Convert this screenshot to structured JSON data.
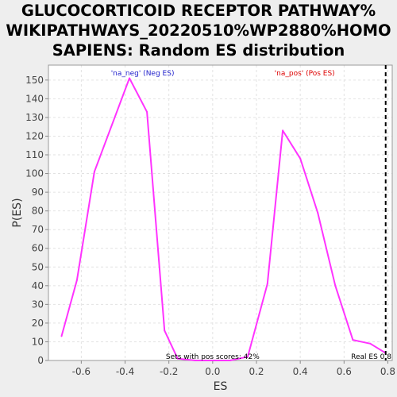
{
  "title_lines": [
    "GLUCOCORTICOID RECEPTOR PATHWAY%",
    "WIKIPATHWAYS_20220510%WP2880%HOMO",
    "SAPIENS: Random ES distribution"
  ],
  "colors": {
    "line": "#ff33ff",
    "neg_label": "#2222cc",
    "pos_label": "#dd0000",
    "background": "#eeeeee",
    "plot_background": "#ffffff",
    "grid": "#e2e2e2"
  },
  "chart_data": {
    "type": "line",
    "xlabel": "ES",
    "ylabel": "P(ES)",
    "xlim": [
      -0.75,
      0.82
    ],
    "ylim": [
      0,
      158
    ],
    "grid": true,
    "x_ticks": [
      -0.6,
      -0.4,
      -0.2,
      0.0,
      0.2,
      0.4,
      0.6,
      0.8
    ],
    "x_tick_labels": [
      "-0.6",
      "-0.4",
      "-0.2",
      "0.0",
      "0.2",
      "0.4",
      "0.6",
      "0.8"
    ],
    "y_ticks": [
      0,
      10,
      20,
      30,
      40,
      50,
      60,
      70,
      80,
      90,
      100,
      110,
      120,
      130,
      140,
      150
    ],
    "y_tick_labels": [
      "0",
      "10",
      "20",
      "30",
      "40",
      "50",
      "60",
      "70",
      "80",
      "90",
      "100",
      "110",
      "120",
      "130",
      "140",
      "150"
    ],
    "series": [
      {
        "points": [
          [
            -0.69,
            13
          ],
          [
            -0.62,
            43
          ],
          [
            -0.54,
            101
          ],
          [
            -0.38,
            151
          ],
          [
            -0.3,
            133
          ],
          [
            -0.22,
            16
          ],
          [
            -0.16,
            1
          ],
          [
            -0.08,
            0
          ],
          [
            0.0,
            0
          ],
          [
            0.08,
            0
          ],
          [
            0.16,
            2
          ],
          [
            0.25,
            41
          ],
          [
            0.32,
            123
          ],
          [
            0.4,
            108
          ],
          [
            0.48,
            79
          ],
          [
            0.56,
            40
          ],
          [
            0.64,
            11
          ],
          [
            0.72,
            9
          ],
          [
            0.79,
            4
          ]
        ]
      }
    ],
    "real_es": 0.79,
    "annotations": {
      "neg_label": "'na_neg' (Neg ES)",
      "pos_label": "'na_pos' (Pos ES)",
      "pos_scores": "Sets with pos scores: 42%",
      "real_es": "Real ES 0.8"
    }
  }
}
